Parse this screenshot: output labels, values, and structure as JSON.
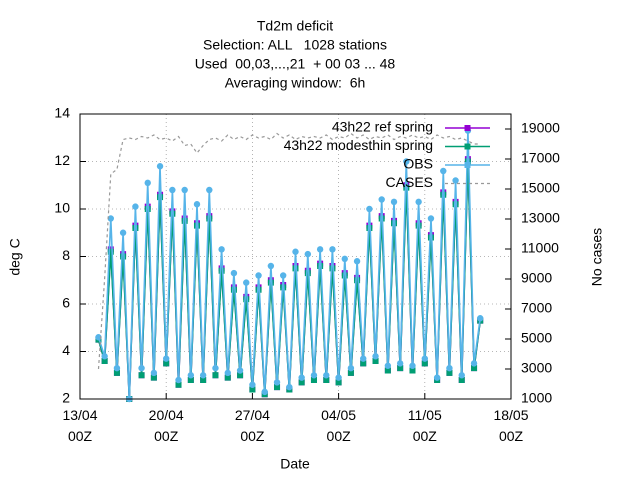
{
  "chart_data": {
    "type": "line",
    "title": [
      "Td2m deficit",
      "Selection: ALL   1028 stations",
      "Used  00,03,...,21  + 00 03 ... 48",
      "Averaging window:  6h"
    ],
    "x_label": "Date",
    "y_label": "deg C",
    "y2_label": "No cases",
    "x": [
      "14/04 12Z",
      "15/04 00Z",
      "15/04 12Z",
      "16/04 00Z",
      "16/04 12Z",
      "17/04 00Z",
      "17/04 12Z",
      "18/04 00Z",
      "18/04 12Z",
      "19/04 00Z",
      "19/04 12Z",
      "20/04 00Z",
      "20/04 12Z",
      "21/04 00Z",
      "21/04 12Z",
      "22/04 00Z",
      "22/04 12Z",
      "23/04 00Z",
      "23/04 12Z",
      "24/04 00Z",
      "24/04 12Z",
      "25/04 00Z",
      "25/04 12Z",
      "26/04 00Z",
      "26/04 12Z",
      "27/04 00Z",
      "27/04 12Z",
      "28/04 00Z",
      "28/04 12Z",
      "29/04 00Z",
      "29/04 12Z",
      "30/04 00Z",
      "30/04 12Z",
      "01/05 00Z",
      "01/05 12Z",
      "02/05 00Z",
      "02/05 12Z",
      "03/05 00Z",
      "03/05 12Z",
      "04/05 00Z",
      "04/05 12Z",
      "05/05 00Z",
      "05/05 12Z",
      "06/05 00Z",
      "06/05 12Z",
      "07/05 00Z",
      "07/05 12Z",
      "08/05 00Z",
      "08/05 12Z",
      "09/05 00Z",
      "09/05 12Z",
      "10/05 00Z",
      "10/05 12Z",
      "11/05 00Z",
      "11/05 12Z",
      "12/05 00Z",
      "12/05 12Z",
      "13/05 00Z",
      "13/05 12Z",
      "14/05 00Z",
      "14/05 12Z",
      "15/05 00Z",
      "15/05 12Z"
    ],
    "series": [
      {
        "name": "43h22 ref spring",
        "color": "#9400d3",
        "marker": "star",
        "values": [
          4.5,
          3.6,
          8.3,
          3.1,
          8.1,
          2.0,
          9.3,
          3.0,
          10.1,
          2.9,
          10.6,
          3.5,
          9.9,
          2.6,
          9.6,
          2.8,
          9.4,
          2.8,
          9.7,
          3.0,
          7.5,
          2.9,
          6.7,
          3.0,
          6.3,
          2.4,
          6.7,
          2.2,
          7.0,
          2.5,
          6.8,
          2.4,
          7.6,
          2.7,
          7.4,
          2.8,
          7.7,
          2.8,
          7.6,
          2.7,
          7.3,
          3.1,
          7.1,
          3.5,
          9.3,
          3.6,
          9.7,
          3.2,
          9.5,
          3.3,
          11.0,
          3.2,
          9.4,
          3.5,
          8.9,
          2.8,
          10.7,
          3.1,
          10.3,
          2.8,
          12.1,
          3.3,
          5.3
        ]
      },
      {
        "name": "43h22 modesthin spring",
        "color": "#009e73",
        "marker": "square",
        "values": [
          4.5,
          3.6,
          8.2,
          3.1,
          8.0,
          2.0,
          9.2,
          3.0,
          10.0,
          2.9,
          10.5,
          3.5,
          9.8,
          2.6,
          9.5,
          2.8,
          9.3,
          2.8,
          9.6,
          3.0,
          7.4,
          2.9,
          6.6,
          3.0,
          6.2,
          2.4,
          6.6,
          2.2,
          6.9,
          2.5,
          6.7,
          2.4,
          7.5,
          2.7,
          7.3,
          2.8,
          7.6,
          2.8,
          7.5,
          2.7,
          7.2,
          3.1,
          7.0,
          3.5,
          9.2,
          3.6,
          9.6,
          3.2,
          9.4,
          3.3,
          10.9,
          3.2,
          9.3,
          3.5,
          8.8,
          2.8,
          10.6,
          3.1,
          10.2,
          2.8,
          12.0,
          3.3,
          5.3
        ]
      },
      {
        "name": "OBS",
        "color": "#56b4e9",
        "marker": "circle",
        "values": [
          4.6,
          3.8,
          9.6,
          3.3,
          9.0,
          2.0,
          10.1,
          3.3,
          11.1,
          3.1,
          11.8,
          3.7,
          10.8,
          2.8,
          10.8,
          3.0,
          10.2,
          3.0,
          10.8,
          3.3,
          8.3,
          3.1,
          7.3,
          3.2,
          6.9,
          2.6,
          7.2,
          2.3,
          7.6,
          2.7,
          7.2,
          2.5,
          8.2,
          2.9,
          8.1,
          3.0,
          8.3,
          3.0,
          8.3,
          2.9,
          7.9,
          3.3,
          7.8,
          3.7,
          10.0,
          3.8,
          10.4,
          3.4,
          10.3,
          3.5,
          12.0,
          3.4,
          10.3,
          3.7,
          9.6,
          2.9,
          11.6,
          3.3,
          11.2,
          3.0,
          13.3,
          3.5,
          5.4
        ]
      },
      {
        "name": "CASES",
        "color": "#999999",
        "axis": "y2",
        "dashed": true,
        "values": [
          3000,
          9000,
          16000,
          16300,
          18300,
          18400,
          18300,
          18500,
          18400,
          18600,
          18300,
          18400,
          18200,
          18500,
          17900,
          18000,
          17400,
          17900,
          18300,
          18400,
          18200,
          18600,
          18300,
          18500,
          18300,
          18600,
          18400,
          18500,
          18300,
          18700,
          18400,
          18600,
          18300,
          18500,
          18400,
          18500,
          18400,
          18600,
          18300,
          18500,
          18400,
          18700,
          18400,
          18600,
          18300,
          18500,
          18400,
          18600,
          18300,
          18500,
          18400,
          18600,
          18400,
          18500,
          18300,
          18600,
          18400,
          18500,
          18300,
          18400,
          18200,
          18000,
          18000
        ]
      }
    ],
    "xlim": [
      "13/04 00Z",
      "18/05 00Z"
    ],
    "xticks": [
      "13/04 00Z",
      "20/04 00Z",
      "27/04 00Z",
      "04/05 00Z",
      "11/05 00Z",
      "18/05 00Z"
    ],
    "ylim": [
      2,
      14
    ],
    "yticks": [
      2,
      4,
      6,
      8,
      10,
      12,
      14
    ],
    "y2lim": [
      1000,
      20000
    ],
    "y2ticks": [
      1000,
      3000,
      5000,
      7000,
      9000,
      11000,
      13000,
      15000,
      17000,
      19000
    ],
    "grid": true,
    "legend": "top-right"
  }
}
